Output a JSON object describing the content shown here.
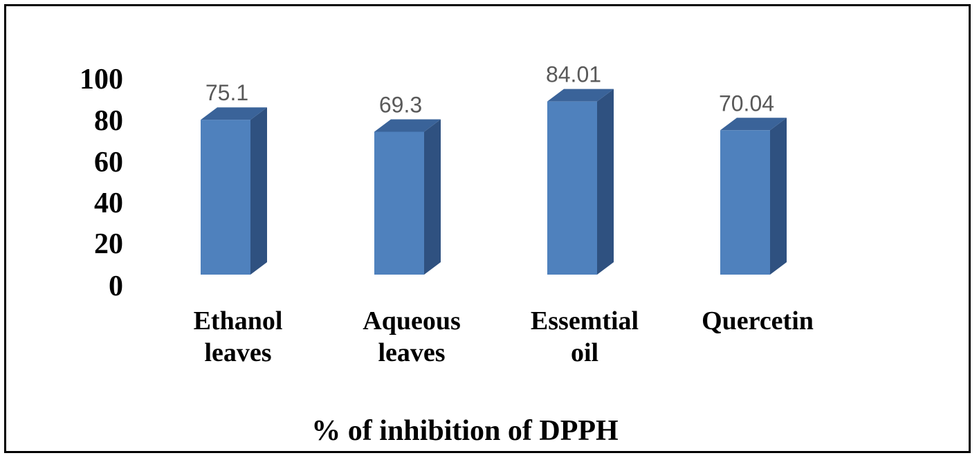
{
  "chart_data": {
    "type": "bar",
    "style": "3d-column",
    "categories": [
      [
        "Ethanol",
        "leaves"
      ],
      [
        "Aqueous",
        "leaves"
      ],
      [
        "Essemtial",
        "oil"
      ],
      [
        "Quercetin"
      ]
    ],
    "values": [
      75.1,
      69.3,
      84.01,
      70.04
    ],
    "data_labels": [
      "75.1",
      "69.3",
      "84.01",
      "70.04"
    ],
    "y_ticks": [
      "0",
      "20",
      "40",
      "60",
      "80",
      "100"
    ],
    "ylim": [
      0,
      100
    ],
    "xlabel": "% of inhibition of DPPH",
    "ylabel": "",
    "grid": false,
    "legend": "none",
    "colors": {
      "bar_front": "#4f81bd",
      "bar_side": "#2f5180",
      "bar_top": "#3a6399",
      "data_label": "#595959",
      "axis_text": "#000000",
      "frame": "#000000"
    }
  }
}
